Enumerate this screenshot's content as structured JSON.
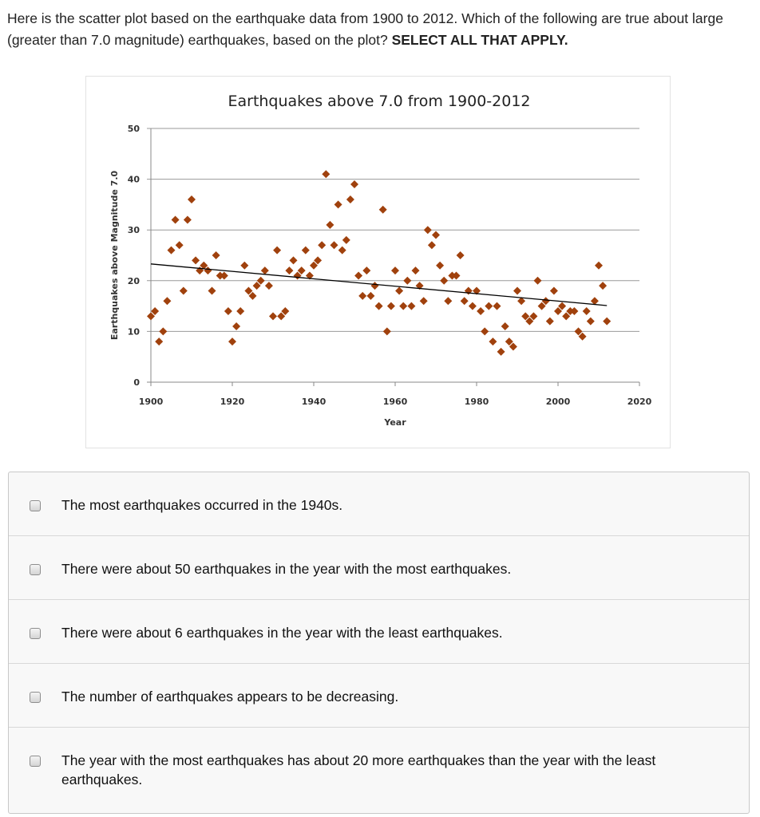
{
  "question": {
    "text": "Here is the scatter plot based on the earthquake data from 1900 to 2012.  Which of the following are true about large (greater than 7.0 magnitude) earthquakes, based on the plot? ",
    "emphasis": "SELECT ALL THAT APPLY."
  },
  "options": [
    {
      "label": "The most earthquakes occurred in the 1940s.",
      "checked": false
    },
    {
      "label": "There were about 50 earthquakes in the year with the most earthquakes.",
      "checked": false
    },
    {
      "label": "There were about 6 earthquakes in the year with the least earthquakes.",
      "checked": false
    },
    {
      "label": "The number of earthquakes appears to be decreasing.",
      "checked": false
    },
    {
      "label": "The year with the most earthquakes has about 20 more earthquakes than the year with the least earthquakes.",
      "checked": false
    }
  ],
  "chart_data": {
    "type": "scatter",
    "title": "Earthquakes above 7.0 from 1900-2012",
    "xlabel": "Year",
    "ylabel": "Earthquakes above Magnitude 7.0",
    "xlim": [
      1900,
      2020
    ],
    "ylim": [
      0,
      50
    ],
    "xticks": [
      "1900",
      "1920",
      "1940",
      "1960",
      "1980",
      "2000",
      "2020"
    ],
    "yticks": [
      "0",
      "10",
      "20",
      "30",
      "40",
      "50"
    ],
    "grid": "horizontal",
    "marker_color": "#a0410d",
    "trendline": {
      "x": [
        1900,
        2012
      ],
      "y": [
        23.3,
        15.1
      ],
      "color": "#000000"
    },
    "x": [
      1900,
      1901,
      1902,
      1903,
      1904,
      1905,
      1906,
      1907,
      1908,
      1909,
      1910,
      1911,
      1912,
      1913,
      1914,
      1915,
      1916,
      1917,
      1918,
      1919,
      1920,
      1921,
      1922,
      1923,
      1924,
      1925,
      1926,
      1927,
      1928,
      1929,
      1930,
      1931,
      1932,
      1933,
      1934,
      1935,
      1936,
      1937,
      1938,
      1939,
      1940,
      1941,
      1942,
      1943,
      1944,
      1945,
      1946,
      1947,
      1948,
      1949,
      1950,
      1951,
      1952,
      1953,
      1954,
      1955,
      1956,
      1957,
      1958,
      1959,
      1960,
      1961,
      1962,
      1963,
      1964,
      1965,
      1966,
      1967,
      1968,
      1969,
      1970,
      1971,
      1972,
      1973,
      1974,
      1975,
      1976,
      1977,
      1978,
      1979,
      1980,
      1981,
      1982,
      1983,
      1984,
      1985,
      1986,
      1987,
      1988,
      1989,
      1990,
      1991,
      1992,
      1993,
      1994,
      1995,
      1996,
      1997,
      1998,
      1999,
      2000,
      2001,
      2002,
      2003,
      2004,
      2005,
      2006,
      2007,
      2008,
      2009,
      2010,
      2011,
      2012
    ],
    "y": [
      13,
      14,
      8,
      10,
      16,
      26,
      32,
      27,
      18,
      32,
      36,
      24,
      22,
      23,
      22,
      18,
      25,
      21,
      21,
      14,
      8,
      11,
      14,
      23,
      18,
      17,
      19,
      20,
      22,
      19,
      13,
      26,
      13,
      14,
      22,
      24,
      21,
      22,
      26,
      21,
      23,
      24,
      27,
      41,
      31,
      27,
      35,
      26,
      28,
      36,
      39,
      21,
      17,
      22,
      17,
      19,
      15,
      34,
      10,
      15,
      22,
      18,
      15,
      20,
      15,
      22,
      19,
      16,
      30,
      27,
      29,
      23,
      20,
      16,
      21,
      21,
      25,
      16,
      18,
      15,
      18,
      14,
      10,
      15,
      8,
      15,
      6,
      11,
      8,
      7,
      18,
      16,
      13,
      12,
      13,
      20,
      15,
      16,
      12,
      18,
      14,
      15,
      13,
      14,
      14,
      10,
      9,
      14,
      12,
      16,
      23,
      19,
      12
    ]
  }
}
